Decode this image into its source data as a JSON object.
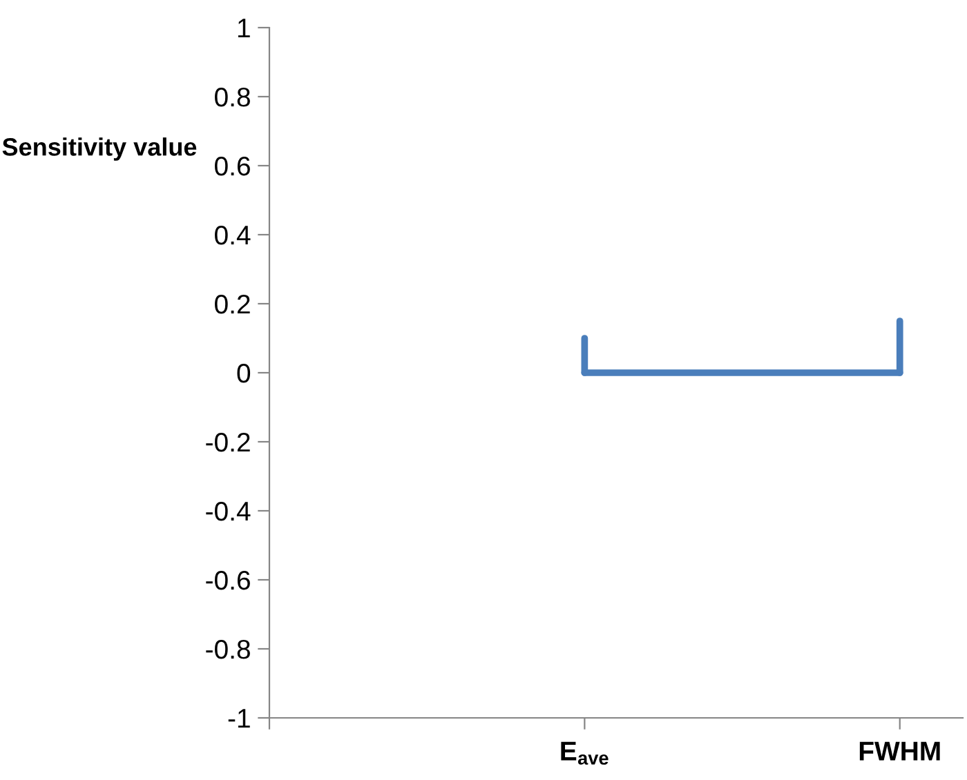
{
  "chart_data": {
    "type": "line",
    "ylabel": "Sensitivity value",
    "categories": [
      null,
      "E$_{ave}$",
      "FWHM"
    ],
    "series": [
      {
        "color": "#4a7ebb",
        "values": [
          null,
          0,
          0
        ],
        "errors": [
          null,
          [
            0,
            0.1
          ],
          [
            0,
            0.15
          ]
        ]
      }
    ],
    "ylim": [
      -1,
      1
    ],
    "yticks": [
      -1,
      -0.8,
      -0.6,
      -0.4,
      -0.2,
      0,
      0.2,
      0.4,
      0.6,
      0.8,
      1
    ],
    "grid": false,
    "marker": "none",
    "line_style": "solid"
  }
}
